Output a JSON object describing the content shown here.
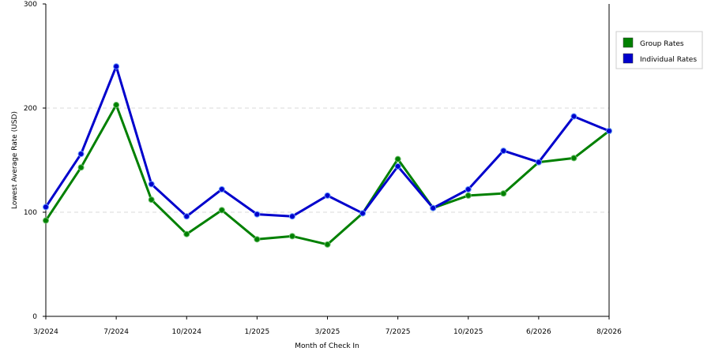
{
  "chart_data": {
    "type": "line",
    "title": "",
    "xlabel": "Month of Check In",
    "ylabel": "Lowest Average Rate (USD)",
    "ylim": [
      0,
      300
    ],
    "yticks": [
      0,
      100,
      200,
      300
    ],
    "grid": true,
    "legend_position": "right",
    "x_tick_labels": [
      "3/2024",
      "7/2024",
      "10/2024",
      "1/2025",
      "3/2025",
      "7/2025",
      "10/2025",
      "6/2026",
      "8/2026"
    ],
    "x_tick_positions": [
      0,
      2,
      4,
      6,
      8,
      10,
      12,
      14,
      16
    ],
    "point_count": 17,
    "series": [
      {
        "name": "Group Rates",
        "color": "#008000",
        "values": [
          92,
          143,
          203,
          112,
          79,
          102,
          74,
          77,
          69,
          99,
          151,
          104,
          116,
          118,
          148,
          152,
          178
        ]
      },
      {
        "name": "Individual Rates",
        "color": "#0000cc",
        "values": [
          105,
          156,
          240,
          127,
          96,
          122,
          98,
          96,
          116,
          99,
          144,
          104,
          122,
          159,
          148,
          192,
          178
        ]
      }
    ]
  }
}
